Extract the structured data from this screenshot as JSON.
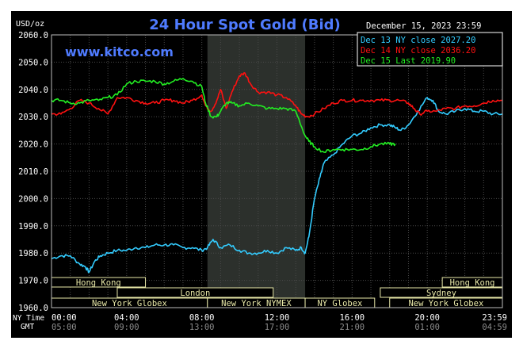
{
  "header": {
    "title": "24 Hour Spot Gold (Bid)",
    "unit": "USD/oz",
    "timestamp": "December 15, 2023 23:59",
    "website": "www.kitco.com"
  },
  "legend": [
    {
      "label": "Dec 13 NY close 2027.20",
      "color": "#33ccff"
    },
    {
      "label": "Dec 14 NY close 2036.20",
      "color": "#ff1111"
    },
    {
      "label": "Dec 15 Last 2019.90",
      "color": "#22ee22"
    }
  ],
  "row_labels": {
    "ny_time": "NY Time",
    "gmt": "GMT"
  },
  "sessions": [
    {
      "label": "Hong Kong",
      "start": 0,
      "end": 5
    },
    {
      "label": "Hong Kong",
      "start": 20.8,
      "end": 24
    },
    {
      "label": "London",
      "start": 3.5,
      "end": 11.8
    },
    {
      "label": "Sydney",
      "start": 17.5,
      "end": 24
    },
    {
      "label": "New York Globex",
      "start": 0,
      "end": 8.3
    },
    {
      "label": "New York NYMEX",
      "start": 8.3,
      "end": 13.5
    },
    {
      "label": "NY Globex",
      "start": 13.5,
      "end": 17.2
    },
    {
      "label": "New York Globex",
      "start": 18,
      "end": 24
    }
  ],
  "chart_data": {
    "type": "line",
    "title": "24 Hour Spot Gold (Bid)",
    "ylabel": "USD/oz",
    "xlim": [
      0,
      24
    ],
    "ylim": [
      1960,
      2060
    ],
    "yticks": [
      "1960.0",
      "1970.0",
      "1980.0",
      "1990.0",
      "2000.0",
      "2010.0",
      "2020.0",
      "2030.0",
      "2040.0",
      "2050.0",
      "2060.0"
    ],
    "ny_time_ticks": [
      "00:00",
      "04:00",
      "08:00",
      "12:00",
      "16:00",
      "20:00",
      "23:59"
    ],
    "gmt_ticks": [
      "05:00",
      "09:00",
      "13:00",
      "17:00",
      "21:00",
      "01:00",
      "04:59"
    ],
    "shaded_region": [
      8.3,
      13.5
    ],
    "grid": true,
    "legend_position": "top-right",
    "series": [
      {
        "name": "Dec 13",
        "color": "#33ccff",
        "x": [
          0,
          0.5,
          1,
          1.5,
          1.8,
          2,
          2.3,
          2.6,
          3,
          3.5,
          4,
          4.5,
          5,
          5.5,
          6,
          6.5,
          7,
          7.5,
          8,
          8.3,
          8.6,
          9,
          9.5,
          10,
          10.5,
          11,
          11.5,
          12,
          12.5,
          13,
          13.3,
          13.5,
          13.7,
          14,
          14.3,
          14.5,
          15,
          15.5,
          16,
          16.5,
          17,
          17.5,
          18,
          18.3,
          18.6,
          19,
          19.5,
          20,
          20.3,
          20.6,
          21,
          21.5,
          22,
          22.5,
          23,
          23.5,
          24
        ],
        "y": [
          1978,
          1979,
          1979,
          1976,
          1975,
          1973,
          1977,
          1979,
          1980,
          1981,
          1981,
          1982,
          1982,
          1983,
          1983,
          1983,
          1982,
          1982,
          1981,
          1982,
          1985,
          1982,
          1983,
          1981,
          1980,
          1980,
          1981,
          1980,
          1982,
          1981,
          1982,
          1980,
          1986,
          2000,
          2008,
          2013,
          2016,
          2020,
          2023,
          2024,
          2026,
          2027,
          2027,
          2026,
          2025,
          2027,
          2032,
          2037,
          2036,
          2032,
          2031,
          2032,
          2033,
          2032,
          2032,
          2031,
          2031
        ]
      },
      {
        "name": "Dec 14",
        "color": "#ff1111",
        "x": [
          0,
          0.5,
          1,
          1.5,
          2,
          2.5,
          3,
          3.5,
          4,
          4.5,
          5,
          5.5,
          6,
          6.5,
          7,
          7.5,
          8,
          8.2,
          8.5,
          8.8,
          9,
          9.3,
          9.6,
          10,
          10.3,
          10.6,
          11,
          11.5,
          12,
          12.5,
          13,
          13.3,
          13.6,
          14,
          14.5,
          15,
          15.5,
          16,
          16.5,
          17,
          17.5,
          18,
          18.5,
          19,
          19.3,
          19.6,
          20,
          20.5,
          21,
          21.5,
          22,
          22.5,
          23,
          23.5,
          24
        ],
        "y": [
          2031,
          2031,
          2033,
          2036,
          2035,
          2033,
          2031,
          2037,
          2037,
          2036,
          2035,
          2035,
          2036,
          2036,
          2035,
          2036,
          2038,
          2034,
          2032,
          2036,
          2040,
          2033,
          2039,
          2045,
          2046,
          2042,
          2039,
          2039,
          2038,
          2037,
          2034,
          2031,
          2030,
          2031,
          2033,
          2035,
          2036,
          2036,
          2036,
          2036,
          2036,
          2036,
          2036,
          2035,
          2033,
          2031,
          2032,
          2032,
          2033,
          2033,
          2034,
          2034,
          2035,
          2036,
          2036
        ]
      },
      {
        "name": "Dec 15",
        "color": "#22ee22",
        "x": [
          0,
          0.5,
          1,
          1.5,
          2,
          2.5,
          3,
          3.5,
          4,
          4.5,
          5,
          5.5,
          6,
          6.5,
          7,
          7.5,
          8,
          8.2,
          8.5,
          8.8,
          9,
          9.3,
          9.6,
          10,
          10.5,
          11,
          11.5,
          12,
          12.5,
          13,
          13.5,
          13.7,
          14,
          14.5,
          15,
          15.5,
          16,
          16.5,
          17,
          17.5,
          18,
          18.3
        ],
        "y": [
          2036,
          2036,
          2035,
          2035,
          2036,
          2036,
          2037,
          2038,
          2042,
          2043,
          2043,
          2043,
          2042,
          2043,
          2044,
          2043,
          2041,
          2035,
          2030,
          2030,
          2032,
          2035,
          2035,
          2034,
          2035,
          2034,
          2033,
          2033,
          2033,
          2032,
          2023,
          2021,
          2019,
          2017,
          2018,
          2018,
          2018,
          2018,
          2019,
          2020,
          2020,
          2020
        ]
      }
    ]
  }
}
